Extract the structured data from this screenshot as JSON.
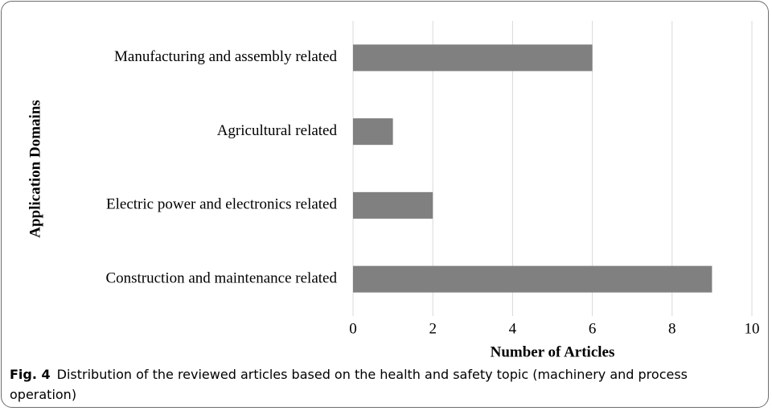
{
  "chart_data": {
    "type": "barh",
    "xlabel": "Number of Articles",
    "ylabel": "Application Domains",
    "categories": [
      "Manufacturing and assembly related",
      "Agricultural related",
      "Electric power and electronics related",
      "Construction and maintenance related"
    ],
    "values": [
      6,
      1,
      2,
      9
    ],
    "color": "#808080",
    "xlim": [
      0,
      10
    ],
    "xticks": [
      0,
      2,
      4,
      6,
      8,
      10
    ],
    "grid": true,
    "caption_label": "Fig. 4",
    "caption": "Distribution of the reviewed articles based on the health and safety topic (machinery and process operation)"
  }
}
